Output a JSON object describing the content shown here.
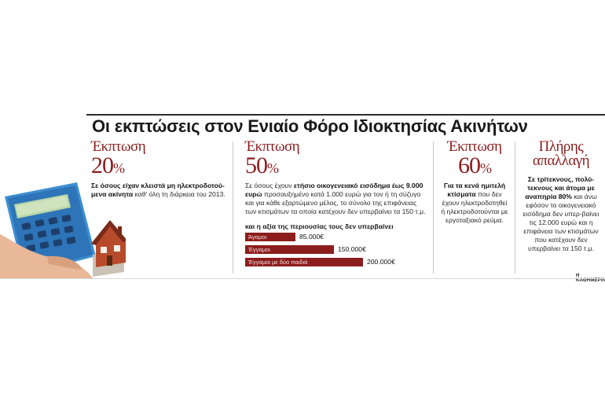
{
  "title": "Οι εκπτώσεις στον Ενιαίο Φόρο Ιδιοκτησίας Ακινήτων",
  "accent_color": "#8c1d1d",
  "illustration": {
    "icons": [
      "calculator-icon",
      "house-icon",
      "hand-icon"
    ]
  },
  "col1": {
    "label": "Έκπτωση",
    "percent": "20",
    "percent_sign": "%",
    "text_bold": "Σε όσους είχαν κλειστά μη ηλεκτροδοτού-μενα ακίνητα",
    "text_rest": " καθ' όλη τη διάρκεια του 2013."
  },
  "col2": {
    "label": "Έκπτωση",
    "percent": "50",
    "percent_sign": "%",
    "text_a": "Σε όσους έχουν ",
    "text_bold": "ετήσιο οικογενειακό εισόδημα έως 9.000 ευρώ",
    "text_b": " προσαυξημένο κατά 1.000 ευρώ για τον ή τη σύζυγο και για κάθε εξαρτώμενο μέλος, το σύνολο της επιφάνειας των κτισμάτων τα οποία κατέχουν δεν υπερβαίνει τα 150 τ.μ.",
    "bars_title": "και η αξία της περιουσίας τους δεν υπερβαίνει",
    "bars": [
      {
        "label": "Άγαμοι",
        "value": "85.000€",
        "amount": 85000
      },
      {
        "label": "Έγγαμοι",
        "value": "150.000€",
        "amount": 150000
      },
      {
        "label": "Έγγαμοι με δύο παιδιά",
        "value": "200.000€",
        "amount": 200000
      }
    ]
  },
  "col3": {
    "label": "Έκπτωση",
    "percent": "60",
    "percent_sign": "%",
    "text_bold": "Για τα κενά ημιτελή κτίσματα",
    "text_rest": " που δεν έχουν ηλεκτροδοτηθεί ή ηλεκτροδοτούνται με εργοταξιακό ρεύμα."
  },
  "col4": {
    "label_line1": "Πλήρης",
    "label_line2": "απαλλαγή",
    "text_bold": "Σε τρίτεκνους, πολύ-τεκνους και άτομα με αναπηρία 80%",
    "text_rest": " και άνω εφόσον το οικογενειακό εισόδημα δεν υπερ-βαίνει τις 12.000 ευρώ και η επιφάνεια των κτισμάτων που κατέχουν δεν υπερβαίνει τα 150 τ.μ."
  },
  "source": "Η ΚΑΘΗΜΕΡΙΝΗ"
}
